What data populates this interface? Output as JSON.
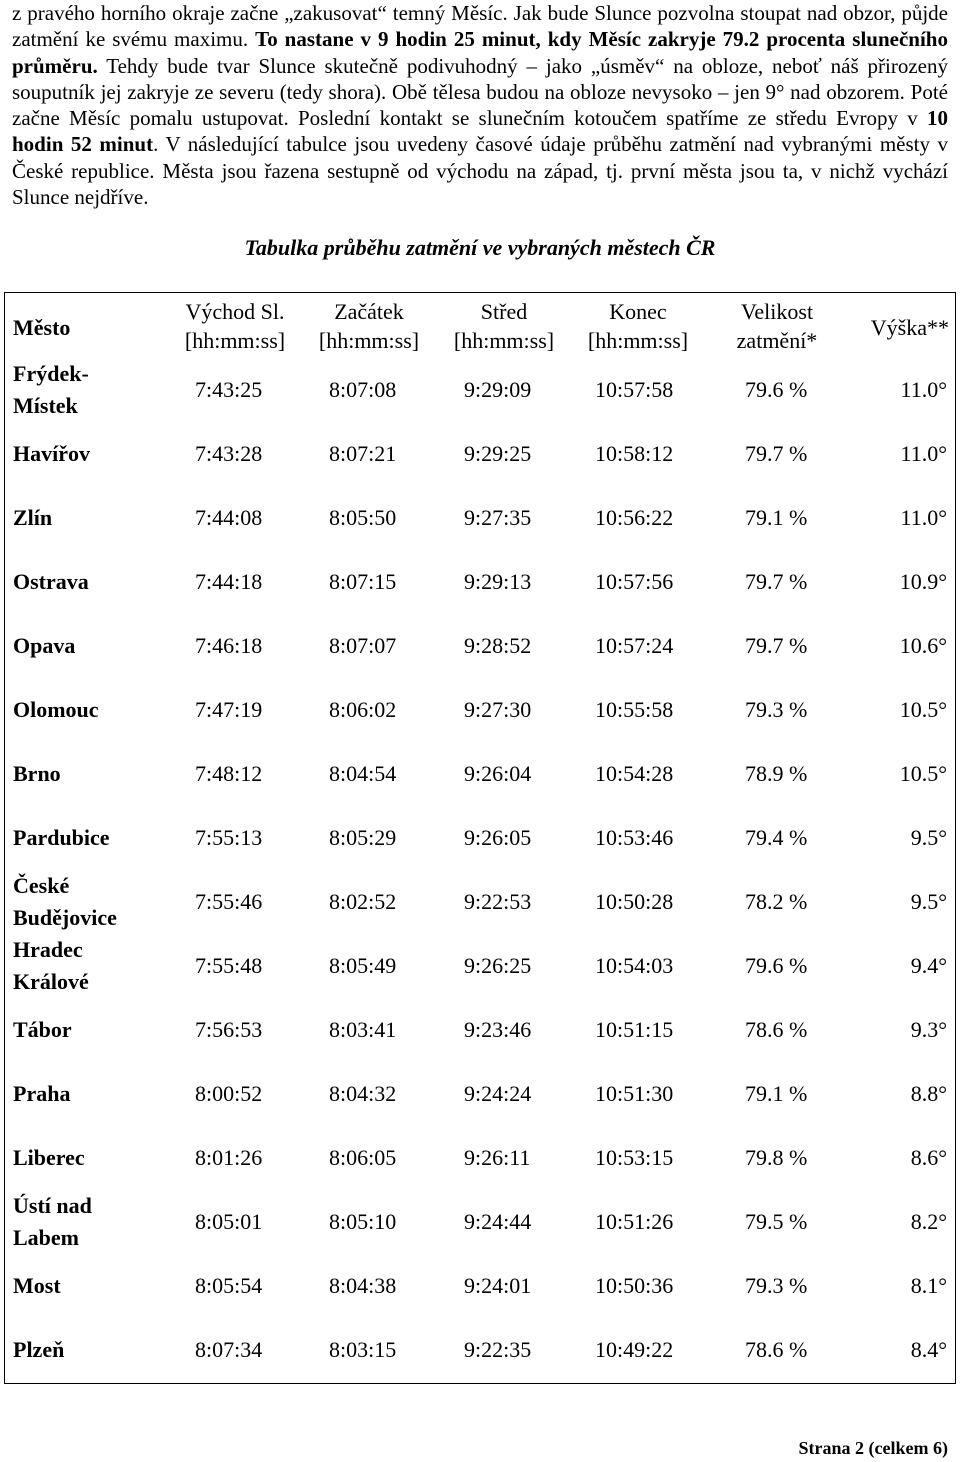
{
  "intro": {
    "s1": "z pravého horního okraje začne „zakusovat“ temný Měsíc. Jak bude Slunce pozvolna stoupat nad obzor, půjde zatmění ke svému maximu. ",
    "s2": "To nastane v 9 hodin 25 minut, kdy Měsíc zakryje 79.2 procenta slunečního průměru.",
    "s3": " Tehdy bude tvar Slunce skutečně podivuhodný – jako „úsměv“ na obloze, neboť náš přirozený souputník jej zakryje ze severu (tedy shora). Obě tělesa budou na obloze nevysoko – jen 9° nad obzorem. Poté začne Měsíc pomalu ustupovat. Poslední kontakt se slunečním kotoučem spatříme ze středu Evropy v ",
    "s4": "10 hodin 52 minut",
    "s5": ". V následující tabulce jsou uvedeny časové údaje průběhu zatmění nad vybranými městy v České republice. Města jsou řazena sestupně od východu na západ, tj. první města jsou ta, v nichž vychází Slunce nejdříve."
  },
  "table": {
    "caption": "Tabulka průběhu zatmění ve vybraných městech ČR",
    "headers": {
      "city": "Město",
      "sunrise_1": "Východ Sl.",
      "sunrise_2": "[hh:mm:ss]",
      "start_1": "Začátek",
      "start_2": "[hh:mm:ss]",
      "mid_1": "Střed",
      "mid_2": "[hh:mm:ss]",
      "end_1": "Konec",
      "end_2": "[hh:mm:ss]",
      "mag_1": "Velikost",
      "mag_2": "zatmění*",
      "alt": "Výška**"
    },
    "rows": [
      {
        "city1": "Frýdek-",
        "city2": "Místek",
        "sunrise": "7:43:25",
        "start": "8:07:08",
        "mid": "9:29:09",
        "end": "10:57:58",
        "mag": "79.6 %",
        "alt": "11.0°"
      },
      {
        "city1": "Havířov",
        "city2": "",
        "sunrise": "7:43:28",
        "start": "8:07:21",
        "mid": "9:29:25",
        "end": "10:58:12",
        "mag": "79.7 %",
        "alt": "11.0°"
      },
      {
        "city1": "Zlín",
        "city2": "",
        "sunrise": "7:44:08",
        "start": "8:05:50",
        "mid": "9:27:35",
        "end": "10:56:22",
        "mag": "79.1 %",
        "alt": "11.0°"
      },
      {
        "city1": "Ostrava",
        "city2": "",
        "sunrise": "7:44:18",
        "start": "8:07:15",
        "mid": "9:29:13",
        "end": "10:57:56",
        "mag": "79.7 %",
        "alt": "10.9°"
      },
      {
        "city1": "Opava",
        "city2": "",
        "sunrise": "7:46:18",
        "start": "8:07:07",
        "mid": "9:28:52",
        "end": "10:57:24",
        "mag": "79.7 %",
        "alt": "10.6°"
      },
      {
        "city1": "Olomouc",
        "city2": "",
        "sunrise": "7:47:19",
        "start": "8:06:02",
        "mid": "9:27:30",
        "end": "10:55:58",
        "mag": "79.3 %",
        "alt": "10.5°"
      },
      {
        "city1": "Brno",
        "city2": "",
        "sunrise": "7:48:12",
        "start": "8:04:54",
        "mid": "9:26:04",
        "end": "10:54:28",
        "mag": "78.9 %",
        "alt": "10.5°"
      },
      {
        "city1": "Pardubice",
        "city2": "",
        "sunrise": "7:55:13",
        "start": "8:05:29",
        "mid": "9:26:05",
        "end": "10:53:46",
        "mag": "79.4 %",
        "alt": "9.5°"
      },
      {
        "city1": "České",
        "city2": "Budějovice",
        "sunrise": "7:55:46",
        "start": "8:02:52",
        "mid": "9:22:53",
        "end": "10:50:28",
        "mag": "78.2 %",
        "alt": "9.5°"
      },
      {
        "city1": "Hradec",
        "city2": "Králové",
        "sunrise": "7:55:48",
        "start": "8:05:49",
        "mid": "9:26:25",
        "end": "10:54:03",
        "mag": "79.6 %",
        "alt": "9.4°"
      },
      {
        "city1": "Tábor",
        "city2": "",
        "sunrise": "7:56:53",
        "start": "8:03:41",
        "mid": "9:23:46",
        "end": "10:51:15",
        "mag": "78.6 %",
        "alt": "9.3°"
      },
      {
        "city1": "Praha",
        "city2": "",
        "sunrise": "8:00:52",
        "start": "8:04:32",
        "mid": "9:24:24",
        "end": "10:51:30",
        "mag": "79.1 %",
        "alt": "8.8°"
      },
      {
        "city1": "Liberec",
        "city2": "",
        "sunrise": "8:01:26",
        "start": "8:06:05",
        "mid": "9:26:11",
        "end": "10:53:15",
        "mag": "79.8 %",
        "alt": "8.6°"
      },
      {
        "city1": "Ústí nad",
        "city2": "Labem",
        "sunrise": "8:05:01",
        "start": "8:05:10",
        "mid": "9:24:44",
        "end": "10:51:26",
        "mag": "79.5 %",
        "alt": "8.2°"
      },
      {
        "city1": "Most",
        "city2": "",
        "sunrise": "8:05:54",
        "start": "8:04:38",
        "mid": "9:24:01",
        "end": "10:50:36",
        "mag": "79.3 %",
        "alt": "8.1°"
      },
      {
        "city1": "Plzeň",
        "city2": "",
        "sunrise": "8:07:34",
        "start": "8:03:15",
        "mid": "9:22:35",
        "end": "10:49:22",
        "mag": "78.6 %",
        "alt": "8.4°"
      }
    ]
  },
  "footer": "Strana 2 (celkem 6)"
}
